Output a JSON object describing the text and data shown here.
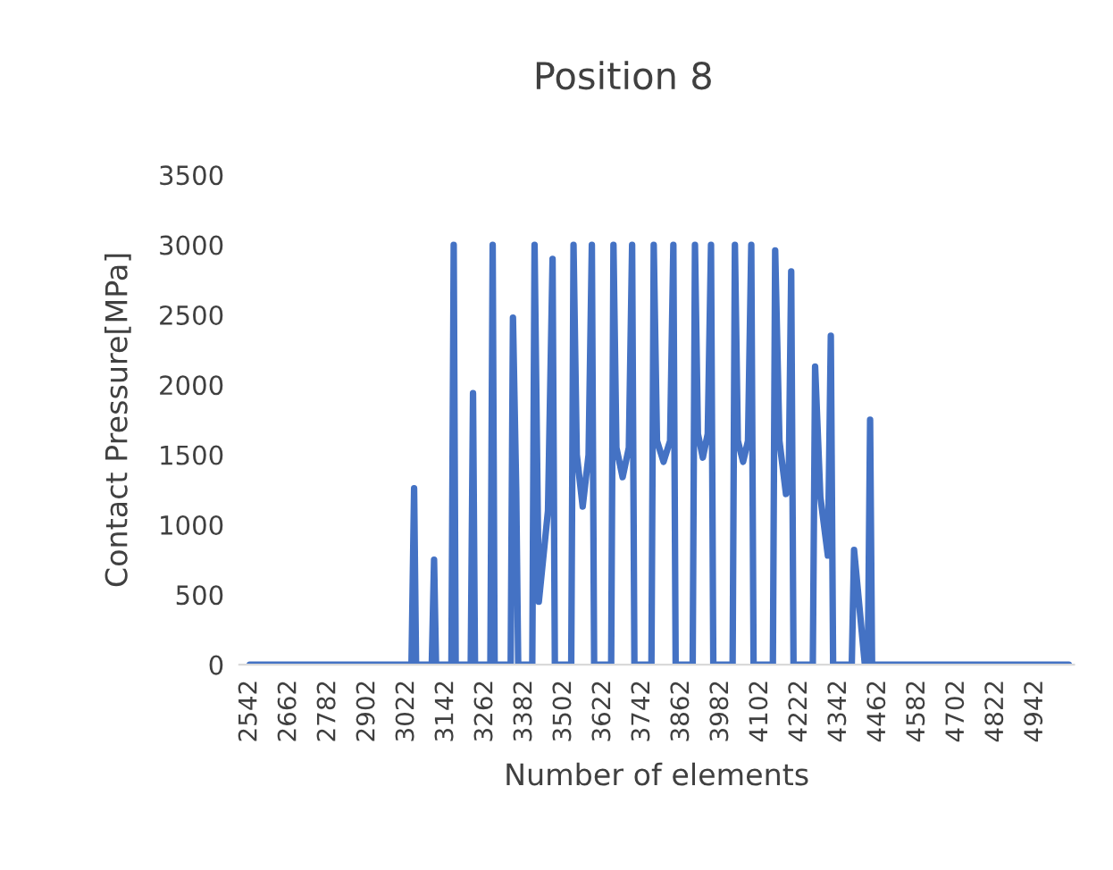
{
  "chart_data": {
    "type": "line",
    "title": "Position 8",
    "xlabel": "Number of elements",
    "ylabel": "Contact Pressure[MPa]",
    "series": [
      {
        "color": "#4472c4",
        "x": [
          2542,
          3036,
          3044,
          3050,
          3098,
          3105,
          3111,
          3158,
          3165,
          3171,
          3217,
          3224,
          3230,
          3277,
          3284,
          3290,
          3339,
          3346,
          3356,
          3362,
          3405,
          3412,
          3425,
          3453,
          3467,
          3474,
          3524,
          3531,
          3541,
          3559,
          3577,
          3587,
          3594,
          3646,
          3653,
          3662,
          3681,
          3700,
          3710,
          3717,
          3769,
          3776,
          3786,
          3806,
          3826,
          3836,
          3843,
          3895,
          3902,
          3911,
          3926,
          3941,
          3951,
          3958,
          4017,
          4024,
          4033,
          4049,
          4064,
          4074,
          4081,
          4140,
          4147,
          4160,
          4180,
          4188,
          4196,
          4203,
          4262,
          4269,
          4285,
          4308,
          4317,
          4324,
          4381,
          4388,
          4421,
          4430,
          4437,
          4443,
          5044
        ],
        "values": [
          0,
          0,
          1260,
          0,
          0,
          750,
          0,
          0,
          3000,
          0,
          0,
          1940,
          0,
          0,
          3000,
          0,
          0,
          2480,
          1240,
          0,
          0,
          3000,
          450,
          1100,
          2900,
          0,
          0,
          3000,
          1500,
          1130,
          1500,
          3000,
          0,
          0,
          3000,
          1550,
          1340,
          1550,
          3000,
          0,
          0,
          3000,
          1600,
          1450,
          1600,
          3000,
          0,
          0,
          3000,
          1650,
          1480,
          1650,
          3000,
          0,
          0,
          3000,
          1600,
          1450,
          1600,
          3000,
          0,
          0,
          2960,
          1600,
          1220,
          1250,
          2810,
          0,
          0,
          2130,
          1200,
          780,
          2350,
          0,
          0,
          820,
          0,
          0,
          1750,
          0,
          0
        ]
      }
    ],
    "xlim": [
      2510,
      5060
    ],
    "xticks": [
      2542,
      2662,
      2782,
      2902,
      3022,
      3142,
      3262,
      3382,
      3502,
      3622,
      3742,
      3862,
      3982,
      4102,
      4222,
      4342,
      4462,
      4582,
      4702,
      4822,
      4942
    ],
    "ylim": [
      0,
      3500
    ],
    "yticks": [
      0,
      500,
      1000,
      1500,
      2000,
      2500,
      3000,
      3500
    ],
    "grid": false,
    "marker": "none",
    "line_style": "solid"
  }
}
